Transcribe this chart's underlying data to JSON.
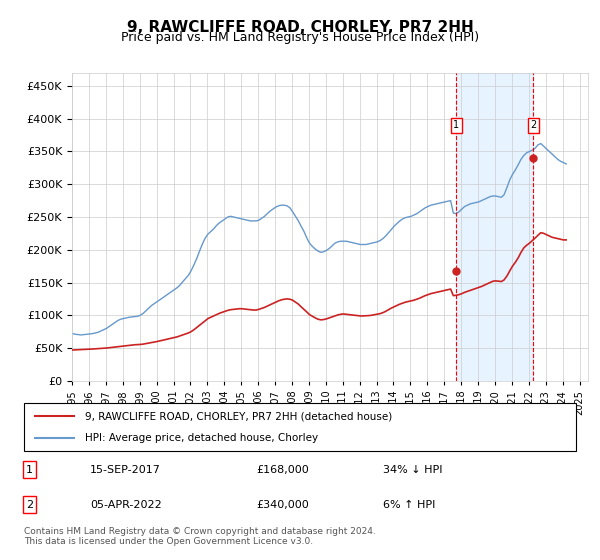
{
  "title": "9, RAWCLIFFE ROAD, CHORLEY, PR7 2HH",
  "subtitle": "Price paid vs. HM Land Registry's House Price Index (HPI)",
  "ylabel_ticks": [
    "£0",
    "£50K",
    "£100K",
    "£150K",
    "£200K",
    "£250K",
    "£300K",
    "£350K",
    "£400K",
    "£450K"
  ],
  "ytick_values": [
    0,
    50000,
    100000,
    150000,
    200000,
    250000,
    300000,
    350000,
    400000,
    450000
  ],
  "ylim": [
    0,
    470000
  ],
  "xlim_start": 1995.0,
  "xlim_end": 2025.5,
  "hpi_color": "#6699cc",
  "price_color": "#cc2222",
  "background_color": "#ffffff",
  "grid_color": "#cccccc",
  "marker1_x": 2017.71,
  "marker1_y": 168000,
  "marker2_x": 2022.27,
  "marker2_y": 340000,
  "marker1_label": "15-SEP-2017",
  "marker1_price": "£168,000",
  "marker1_hpi": "34% ↓ HPI",
  "marker2_label": "05-APR-2022",
  "marker2_price": "£340,000",
  "marker2_hpi": "6% ↑ HPI",
  "legend1": "9, RAWCLIFFE ROAD, CHORLEY, PR7 2HH (detached house)",
  "legend2": "HPI: Average price, detached house, Chorley",
  "footnote": "Contains HM Land Registry data © Crown copyright and database right 2024.\nThis data is licensed under the Open Government Licence v3.0.",
  "hpi_data": {
    "years": [
      1995.04,
      1995.21,
      1995.38,
      1995.54,
      1995.71,
      1995.88,
      1996.04,
      1996.21,
      1996.38,
      1996.54,
      1996.71,
      1996.88,
      1997.04,
      1997.21,
      1997.38,
      1997.54,
      1997.71,
      1997.88,
      1998.04,
      1998.21,
      1998.38,
      1998.54,
      1998.71,
      1998.88,
      1999.04,
      1999.21,
      1999.38,
      1999.54,
      1999.71,
      1999.88,
      2000.04,
      2000.21,
      2000.38,
      2000.54,
      2000.71,
      2000.88,
      2001.04,
      2001.21,
      2001.38,
      2001.54,
      2001.71,
      2001.88,
      2002.04,
      2002.21,
      2002.38,
      2002.54,
      2002.71,
      2002.88,
      2003.04,
      2003.21,
      2003.38,
      2003.54,
      2003.71,
      2003.88,
      2004.04,
      2004.21,
      2004.38,
      2004.54,
      2004.71,
      2004.88,
      2005.04,
      2005.21,
      2005.38,
      2005.54,
      2005.71,
      2005.88,
      2006.04,
      2006.21,
      2006.38,
      2006.54,
      2006.71,
      2006.88,
      2007.04,
      2007.21,
      2007.38,
      2007.54,
      2007.71,
      2007.88,
      2008.04,
      2008.21,
      2008.38,
      2008.54,
      2008.71,
      2008.88,
      2009.04,
      2009.21,
      2009.38,
      2009.54,
      2009.71,
      2009.88,
      2010.04,
      2010.21,
      2010.38,
      2010.54,
      2010.71,
      2010.88,
      2011.04,
      2011.21,
      2011.38,
      2011.54,
      2011.71,
      2011.88,
      2012.04,
      2012.21,
      2012.38,
      2012.54,
      2012.71,
      2012.88,
      2013.04,
      2013.21,
      2013.38,
      2013.54,
      2013.71,
      2013.88,
      2014.04,
      2014.21,
      2014.38,
      2014.54,
      2014.71,
      2014.88,
      2015.04,
      2015.21,
      2015.38,
      2015.54,
      2015.71,
      2015.88,
      2016.04,
      2016.21,
      2016.38,
      2016.54,
      2016.71,
      2016.88,
      2017.04,
      2017.21,
      2017.38,
      2017.54,
      2017.71,
      2017.88,
      2018.04,
      2018.21,
      2018.38,
      2018.54,
      2018.71,
      2018.88,
      2019.04,
      2019.21,
      2019.38,
      2019.54,
      2019.71,
      2019.88,
      2020.04,
      2020.21,
      2020.38,
      2020.54,
      2020.71,
      2020.88,
      2021.04,
      2021.21,
      2021.38,
      2021.54,
      2021.71,
      2021.88,
      2022.04,
      2022.21,
      2022.38,
      2022.54,
      2022.71,
      2022.88,
      2023.04,
      2023.21,
      2023.38,
      2023.54,
      2023.71,
      2023.88,
      2024.04,
      2024.21
    ],
    "values": [
      72000,
      71000,
      70500,
      70000,
      70500,
      71000,
      71500,
      72000,
      73000,
      74000,
      76000,
      78000,
      80000,
      83000,
      86000,
      89000,
      92000,
      94000,
      95000,
      96000,
      97000,
      97500,
      98000,
      98500,
      100000,
      103000,
      107000,
      111000,
      115000,
      118000,
      121000,
      124000,
      127000,
      130000,
      133000,
      136000,
      139000,
      142000,
      146000,
      151000,
      156000,
      161000,
      168000,
      177000,
      187000,
      198000,
      209000,
      218000,
      224000,
      228000,
      232000,
      237000,
      241000,
      244000,
      247000,
      250000,
      251000,
      250000,
      249000,
      248000,
      247000,
      246000,
      245000,
      244000,
      244000,
      244000,
      245000,
      248000,
      251000,
      255000,
      259000,
      262000,
      265000,
      267000,
      268000,
      268000,
      267000,
      264000,
      258000,
      251000,
      244000,
      236000,
      228000,
      218000,
      210000,
      205000,
      201000,
      198000,
      196000,
      197000,
      199000,
      202000,
      206000,
      210000,
      212000,
      213000,
      213000,
      213000,
      212000,
      211000,
      210000,
      209000,
      208000,
      208000,
      208000,
      209000,
      210000,
      211000,
      212000,
      214000,
      217000,
      221000,
      226000,
      231000,
      236000,
      240000,
      244000,
      247000,
      249000,
      250000,
      251000,
      253000,
      255000,
      258000,
      261000,
      264000,
      266000,
      268000,
      269000,
      270000,
      271000,
      272000,
      273000,
      274000,
      275000,
      256000,
      255000,
      258000,
      262000,
      266000,
      268000,
      270000,
      271000,
      272000,
      273000,
      275000,
      277000,
      279000,
      281000,
      282000,
      282000,
      281000,
      280000,
      284000,
      295000,
      307000,
      315000,
      322000,
      330000,
      338000,
      344000,
      348000,
      350000,
      352000,
      355000,
      360000,
      362000,
      358000,
      354000,
      350000,
      346000,
      342000,
      338000,
      335000,
      333000,
      331000
    ]
  },
  "price_data": {
    "years": [
      1995.04,
      1995.21,
      1995.38,
      1995.54,
      1995.71,
      1995.88,
      1996.04,
      1996.21,
      1996.38,
      1996.54,
      1996.71,
      1996.88,
      1997.04,
      1997.21,
      1997.38,
      1997.54,
      1997.71,
      1997.88,
      1998.04,
      1998.21,
      1998.38,
      1998.54,
      1998.71,
      1998.88,
      1999.04,
      1999.21,
      1999.38,
      1999.54,
      1999.71,
      1999.88,
      2000.04,
      2000.21,
      2000.38,
      2000.54,
      2000.71,
      2000.88,
      2001.04,
      2001.21,
      2001.38,
      2001.54,
      2001.71,
      2001.88,
      2002.04,
      2002.21,
      2002.38,
      2002.54,
      2002.71,
      2002.88,
      2003.04,
      2003.21,
      2003.38,
      2003.54,
      2003.71,
      2003.88,
      2004.04,
      2004.21,
      2004.38,
      2004.54,
      2004.71,
      2004.88,
      2005.04,
      2005.21,
      2005.38,
      2005.54,
      2005.71,
      2005.88,
      2006.04,
      2006.21,
      2006.38,
      2006.54,
      2006.71,
      2006.88,
      2007.04,
      2007.21,
      2007.38,
      2007.54,
      2007.71,
      2007.88,
      2008.04,
      2008.21,
      2008.38,
      2008.54,
      2008.71,
      2008.88,
      2009.04,
      2009.21,
      2009.38,
      2009.54,
      2009.71,
      2009.88,
      2010.04,
      2010.21,
      2010.38,
      2010.54,
      2010.71,
      2010.88,
      2011.04,
      2011.21,
      2011.38,
      2011.54,
      2011.71,
      2011.88,
      2012.04,
      2012.21,
      2012.38,
      2012.54,
      2012.71,
      2012.88,
      2013.04,
      2013.21,
      2013.38,
      2013.54,
      2013.71,
      2013.88,
      2014.04,
      2014.21,
      2014.38,
      2014.54,
      2014.71,
      2014.88,
      2015.04,
      2015.21,
      2015.38,
      2015.54,
      2015.71,
      2015.88,
      2016.04,
      2016.21,
      2016.38,
      2016.54,
      2016.71,
      2016.88,
      2017.04,
      2017.21,
      2017.38,
      2017.54,
      2017.71,
      2017.88,
      2018.04,
      2018.21,
      2018.38,
      2018.54,
      2018.71,
      2018.88,
      2019.04,
      2019.21,
      2019.38,
      2019.54,
      2019.71,
      2019.88,
      2020.04,
      2020.21,
      2020.38,
      2020.54,
      2020.71,
      2020.88,
      2021.04,
      2021.21,
      2021.38,
      2021.54,
      2021.71,
      2021.88,
      2022.04,
      2022.21,
      2022.38,
      2022.54,
      2022.71,
      2022.88,
      2023.04,
      2023.21,
      2023.38,
      2023.54,
      2023.71,
      2023.88,
      2024.04,
      2024.21
    ],
    "values": [
      47000,
      47200,
      47400,
      47600,
      47800,
      48000,
      48200,
      48500,
      48800,
      49100,
      49400,
      49700,
      50000,
      50500,
      51000,
      51500,
      52000,
      52500,
      53000,
      53500,
      54000,
      54500,
      55000,
      55200,
      55500,
      56000,
      56800,
      57500,
      58200,
      59000,
      60000,
      61000,
      62000,
      63000,
      64000,
      65000,
      66000,
      67000,
      68500,
      70000,
      71500,
      73000,
      75000,
      78000,
      81500,
      85000,
      88500,
      92000,
      95000,
      97000,
      99000,
      101000,
      103000,
      104500,
      106000,
      107500,
      108500,
      109000,
      109500,
      110000,
      110000,
      109500,
      109000,
      108500,
      108000,
      108000,
      109000,
      110500,
      112000,
      114000,
      116000,
      118000,
      120000,
      122000,
      123500,
      124500,
      125000,
      124500,
      123000,
      120000,
      117000,
      113000,
      109000,
      105000,
      101000,
      98500,
      96000,
      94000,
      93000,
      93500,
      94500,
      96000,
      97500,
      99000,
      100500,
      101500,
      102000,
      101500,
      101000,
      100500,
      100000,
      99500,
      99000,
      99000,
      99200,
      99500,
      100000,
      100800,
      101500,
      102500,
      104000,
      106000,
      108500,
      111000,
      113000,
      115000,
      117000,
      118500,
      120000,
      121000,
      122000,
      123000,
      124500,
      126000,
      128000,
      130000,
      131500,
      133000,
      134000,
      135000,
      136000,
      137000,
      138000,
      139000,
      140000,
      130000,
      130500,
      131500,
      133000,
      135000,
      136500,
      138000,
      139500,
      141000,
      142500,
      144000,
      146000,
      148000,
      150000,
      152000,
      152500,
      152000,
      151500,
      154000,
      160000,
      168000,
      175000,
      181000,
      188000,
      196000,
      203000,
      207000,
      210000,
      214000,
      218000,
      222000,
      226000,
      225000,
      223000,
      221000,
      219000,
      218000,
      217000,
      216000,
      215000,
      215000
    ]
  }
}
